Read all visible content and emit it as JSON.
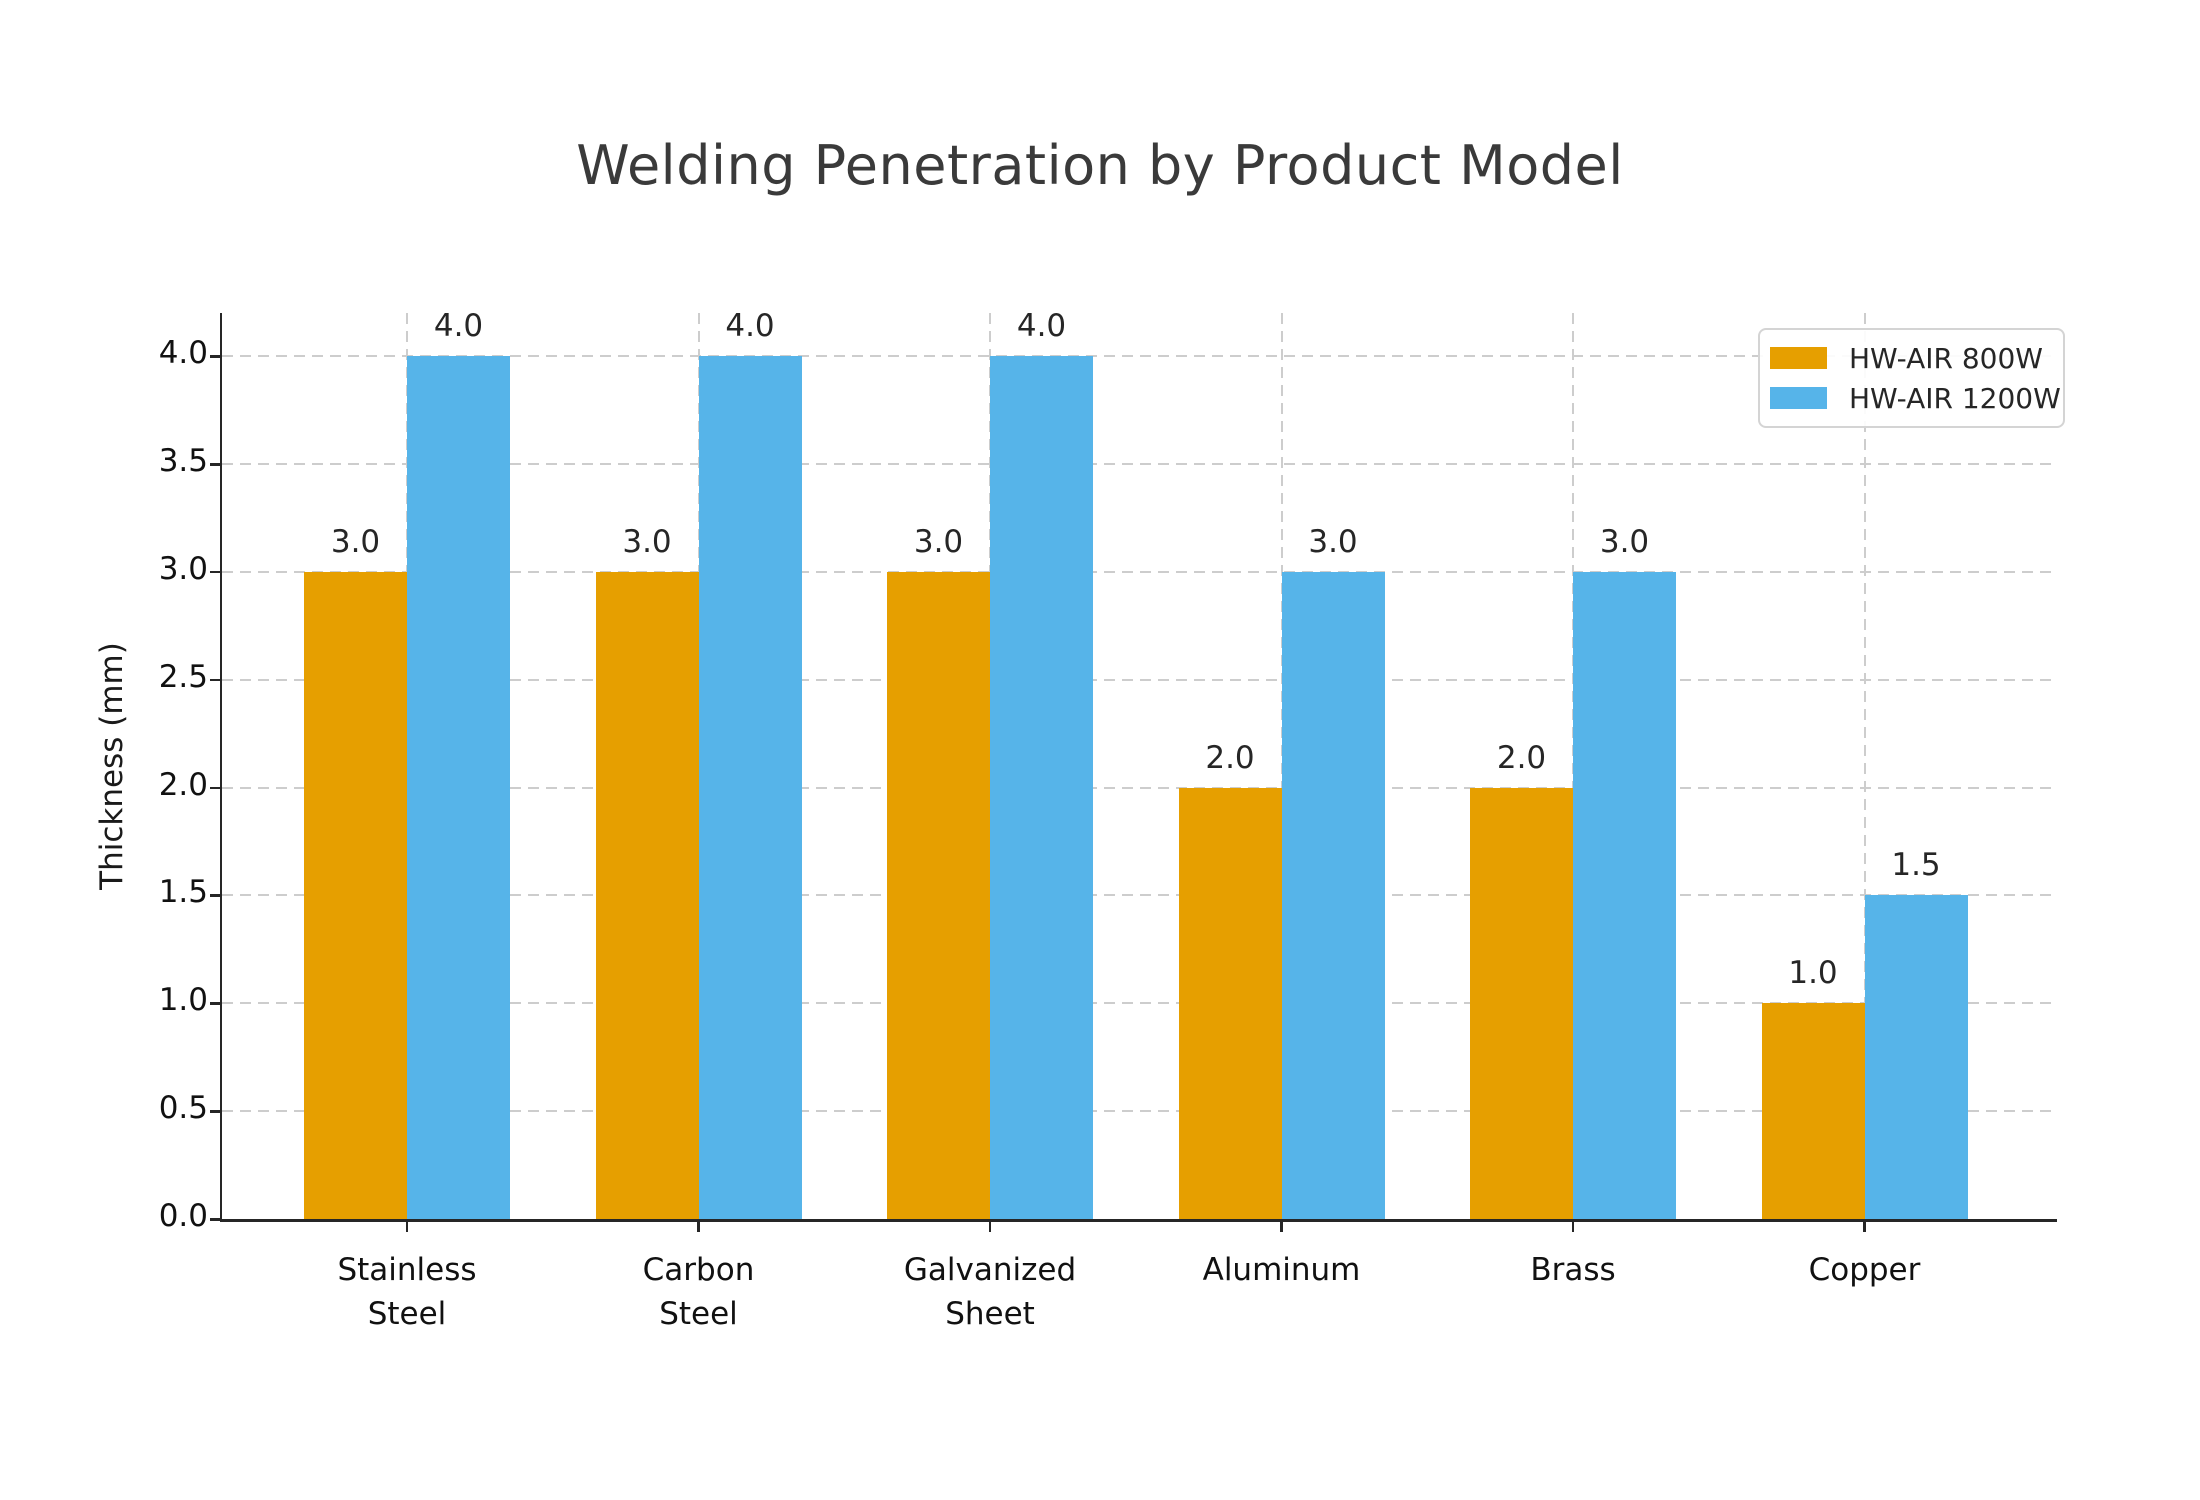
{
  "chart_data": {
    "type": "bar",
    "title": "Welding Penetration by Product Model",
    "xlabel": "",
    "ylabel": "Thickness (mm)",
    "categories": [
      "Stainless\nSteel",
      "Carbon\nSteel",
      "Galvanized\nSheet",
      "Aluminum",
      "Brass",
      "Copper"
    ],
    "series": [
      {
        "name": "HW-AIR 800W",
        "color": "#E69F00",
        "values": [
          3.0,
          3.0,
          3.0,
          2.0,
          2.0,
          1.0
        ]
      },
      {
        "name": "HW-AIR 1200W",
        "color": "#56B4E9",
        "values": [
          4.0,
          4.0,
          4.0,
          3.0,
          3.0,
          1.5
        ]
      }
    ],
    "bar_value_labels": [
      [
        "3.0",
        "3.0",
        "3.0",
        "2.0",
        "2.0",
        "1.0"
      ],
      [
        "4.0",
        "4.0",
        "4.0",
        "3.0",
        "3.0",
        "1.5"
      ]
    ],
    "ytick_labels": [
      "0.0",
      "0.5",
      "1.0",
      "1.5",
      "2.0",
      "2.5",
      "3.0",
      "3.5",
      "4.0"
    ],
    "ylim": [
      0,
      4.2
    ],
    "grid": true,
    "legend_position": "upper right",
    "colors": {
      "grid": "#cdcdcd",
      "spine": "#262626",
      "title_text": "#3a3a3a",
      "tick_text": "#111111",
      "value_label_text": "#262626",
      "legend_border": "#d4d4d4",
      "background": "#ffffff"
    }
  }
}
